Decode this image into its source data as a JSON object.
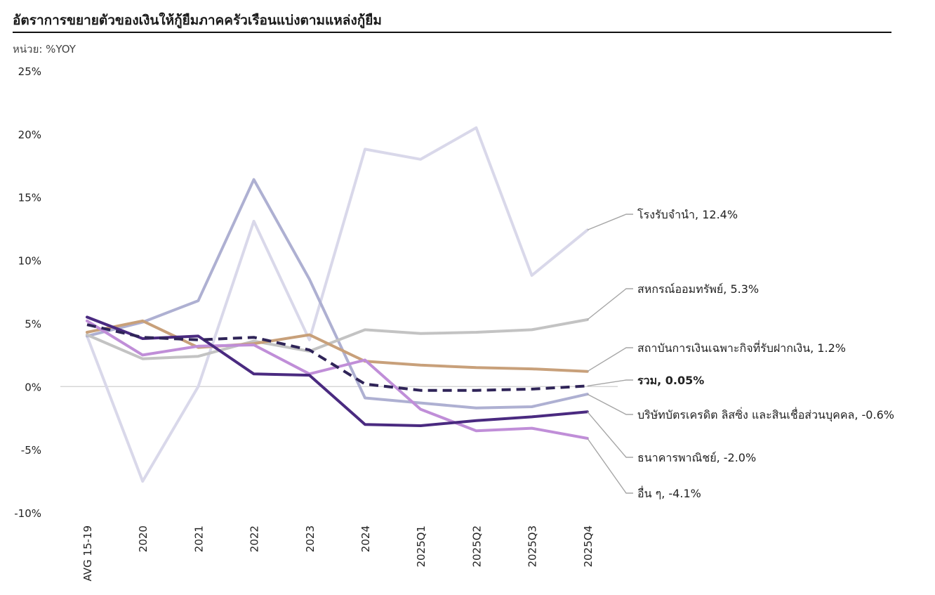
{
  "title": "อัตราการขยายตัวของเงินให้กู้ยืมภาคครัวเรือนแบ่งตามแหล่งกู้ยืม",
  "unit": "หน่วย: %YOY",
  "chart_data": {
    "type": "line",
    "title": "อัตราการขยายตัวของเงินให้กู้ยืมภาคครัวเรือนแบ่งตามแหล่งกู้ยืม",
    "ylabel": "หน่วย: %YOY",
    "ylim": [
      -10,
      25
    ],
    "yticks": [
      25,
      20,
      15,
      10,
      5,
      0,
      -5,
      -10
    ],
    "ytick_labels": [
      "25%",
      "20%",
      "15%",
      "10%",
      "5%",
      "0%",
      "-5%",
      "-10%"
    ],
    "categories": [
      "AVG 15-19",
      "2020",
      "2021",
      "2022",
      "2023",
      "2024",
      "2025Q1",
      "2025Q2",
      "2025Q3",
      "2025Q4"
    ],
    "series": [
      {
        "name": "โรงรับจำนำ",
        "label": "โรงรับจำนำ, 12.4%",
        "color": "#d9d8ea",
        "dashed": false,
        "bold": false,
        "values": [
          4.0,
          -7.5,
          0.0,
          13.1,
          3.7,
          18.8,
          18.0,
          20.5,
          8.8,
          12.4
        ]
      },
      {
        "name": "บริษัทบัตรเครดิต ลิสซิ่ง และสินเชื่อส่วนบุคคล",
        "label": "บริษัทบัตรเครดิต ลิสซิ่ง และสินเชื่อส่วนบุคคล, -0.6%",
        "color": "#aeb0d2",
        "dashed": false,
        "bold": false,
        "values": [
          4.0,
          5.1,
          6.8,
          16.4,
          8.5,
          -0.9,
          -1.3,
          -1.7,
          -1.6,
          -0.6
        ]
      },
      {
        "name": "สหกรณ์ออมทรัพย์",
        "label": "สหกรณ์ออมทรัพย์, 5.3%",
        "color": "#c3c3c3",
        "dashed": false,
        "bold": false,
        "values": [
          4.1,
          2.2,
          2.4,
          3.6,
          2.8,
          4.5,
          4.2,
          4.3,
          4.5,
          5.3
        ]
      },
      {
        "name": "สถาบันการเงินเฉพาะกิจที่รับฝากเงิน",
        "label": "สถาบันการเงินเฉพาะกิจที่รับฝากเงิน, 1.2%",
        "color": "#c8a07a",
        "dashed": false,
        "bold": false,
        "values": [
          4.3,
          5.2,
          3.1,
          3.4,
          4.1,
          2.0,
          1.7,
          1.5,
          1.4,
          1.2
        ]
      },
      {
        "name": "อื่น ๆ",
        "label": "อื่น ๆ, -4.1%",
        "color": "#c08ed8",
        "dashed": false,
        "bold": false,
        "values": [
          5.2,
          2.5,
          3.2,
          3.3,
          1.0,
          2.1,
          -1.8,
          -3.5,
          -3.3,
          -4.1
        ]
      },
      {
        "name": "ธนาคารพาณิชย์",
        "label": "ธนาคารพาณิชย์, -2.0%",
        "color": "#4a2a80",
        "dashed": false,
        "bold": false,
        "values": [
          5.5,
          3.8,
          4.0,
          1.0,
          0.9,
          -3.0,
          -3.1,
          -2.7,
          -2.4,
          -2.0
        ]
      },
      {
        "name": "รวม",
        "label": "รวม, 0.05%",
        "color": "#2f2458",
        "dashed": true,
        "bold": true,
        "values": [
          4.9,
          3.9,
          3.7,
          3.9,
          2.9,
          0.2,
          -0.3,
          -0.3,
          -0.2,
          0.05
        ]
      }
    ],
    "legend_placement": "right, leader lines to line ends"
  }
}
